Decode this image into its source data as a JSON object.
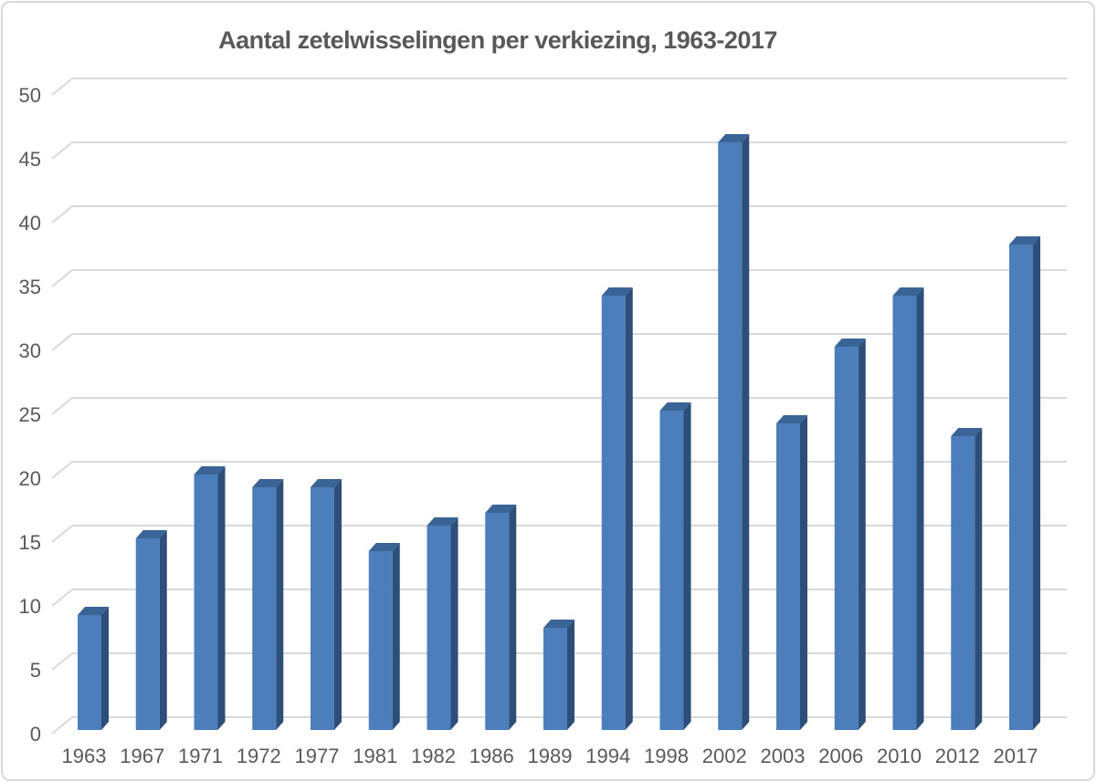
{
  "chart_data": {
    "type": "bar",
    "style": "3d-bar",
    "title": "Aantal zetelwisselingen per verkiezing, 1963-2017",
    "categories": [
      "1963",
      "1967",
      "1971",
      "1972",
      "1977",
      "1981",
      "1982",
      "1986",
      "1989",
      "1994",
      "1998",
      "2002",
      "2003",
      "2006",
      "2010",
      "2012",
      "2017"
    ],
    "values": [
      9,
      15,
      20,
      19,
      19,
      14,
      16,
      17,
      8,
      34,
      25,
      46,
      24,
      30,
      34,
      23,
      38
    ],
    "xlabel": "",
    "ylabel": "",
    "ylim": [
      0,
      50
    ],
    "yticks": [
      0,
      5,
      10,
      15,
      20,
      25,
      30,
      35,
      40,
      45,
      50
    ],
    "grid": true,
    "legend": false,
    "colors": {
      "bar_front": "#4D7EBC",
      "bar_top": "#3A6496",
      "bar_side": "#2E4E7A",
      "gridline": "#D9D9D9",
      "text": "#595959",
      "frame_border": "#D9D9D9",
      "background": "#FFFFFF"
    }
  }
}
